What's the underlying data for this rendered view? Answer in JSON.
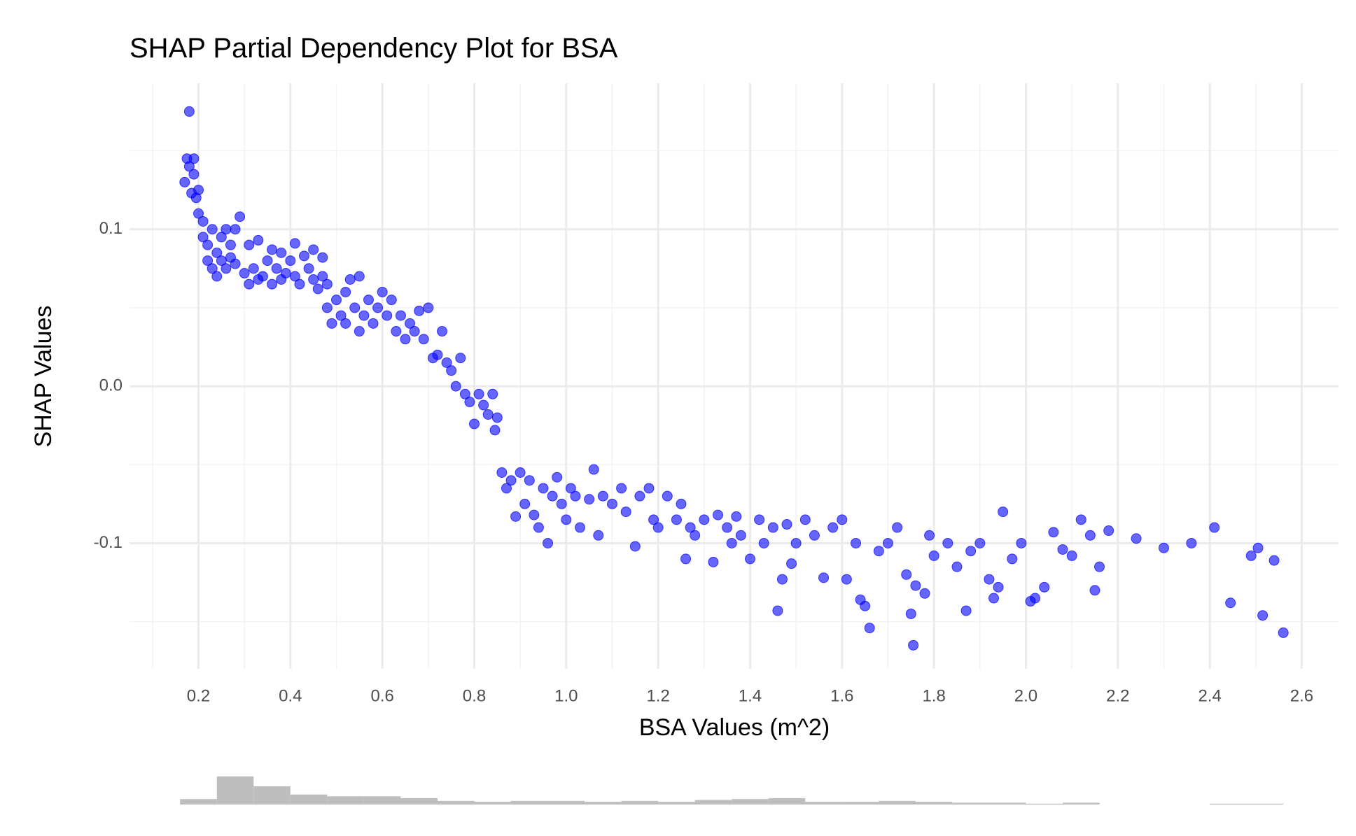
{
  "chart_data": [
    {
      "type": "scatter",
      "title": "SHAP Partial Dependency Plot for BSA",
      "x_label": "BSA Values (m^2)",
      "y_label": "SHAP Values",
      "color": "#0000ff",
      "grid": true,
      "xlim": [
        0.05,
        2.68
      ],
      "ylim": [
        -0.18,
        0.193
      ],
      "xticks": [
        0.2,
        0.4,
        0.6,
        0.8,
        {
          "value": 1.0,
          "label": "1.0"
        },
        1.2,
        1.4,
        1.6,
        1.8,
        {
          "value": 2.0,
          "label": "2.0"
        },
        2.2,
        2.4,
        2.6
      ],
      "yticks": [
        -0.1,
        {
          "value": 0.0,
          "label": "0.0"
        },
        0.1
      ],
      "x": [
        0.17,
        0.175,
        0.18,
        0.18,
        0.185,
        0.19,
        0.19,
        0.195,
        0.2,
        0.2,
        0.21,
        0.21,
        0.22,
        0.22,
        0.23,
        0.23,
        0.24,
        0.24,
        0.25,
        0.25,
        0.26,
        0.26,
        0.27,
        0.27,
        0.28,
        0.28,
        0.29,
        0.3,
        0.31,
        0.31,
        0.32,
        0.33,
        0.33,
        0.34,
        0.35,
        0.36,
        0.36,
        0.37,
        0.38,
        0.38,
        0.39,
        0.4,
        0.41,
        0.41,
        0.42,
        0.43,
        0.44,
        0.45,
        0.45,
        0.46,
        0.47,
        0.47,
        0.48,
        0.48,
        0.49,
        0.5,
        0.51,
        0.52,
        0.52,
        0.53,
        0.54,
        0.55,
        0.55,
        0.56,
        0.57,
        0.58,
        0.59,
        0.6,
        0.61,
        0.62,
        0.63,
        0.64,
        0.65,
        0.66,
        0.67,
        0.68,
        0.69,
        0.7,
        0.71,
        0.72,
        0.73,
        0.74,
        0.75,
        0.76,
        0.77,
        0.78,
        0.79,
        0.8,
        0.81,
        0.82,
        0.83,
        0.84,
        0.845,
        0.85,
        0.86,
        0.87,
        0.88,
        0.89,
        0.9,
        0.91,
        0.92,
        0.93,
        0.94,
        0.95,
        0.96,
        0.97,
        0.98,
        0.99,
        1.0,
        1.01,
        1.02,
        1.03,
        1.05,
        1.06,
        1.07,
        1.08,
        1.1,
        1.12,
        1.13,
        1.15,
        1.16,
        1.18,
        1.19,
        1.2,
        1.22,
        1.24,
        1.25,
        1.26,
        1.27,
        1.28,
        1.3,
        1.32,
        1.33,
        1.35,
        1.36,
        1.37,
        1.38,
        1.4,
        1.42,
        1.43,
        1.45,
        1.46,
        1.47,
        1.48,
        1.49,
        1.5,
        1.52,
        1.54,
        1.56,
        1.58,
        1.6,
        1.61,
        1.63,
        1.64,
        1.65,
        1.66,
        1.68,
        1.7,
        1.72,
        1.74,
        1.75,
        1.755,
        1.76,
        1.78,
        1.79,
        1.8,
        1.83,
        1.85,
        1.87,
        1.88,
        1.9,
        1.92,
        1.93,
        1.94,
        1.95,
        1.97,
        1.99,
        2.01,
        2.02,
        2.04,
        2.06,
        2.08,
        2.1,
        2.12,
        2.14,
        2.15,
        2.16,
        2.18,
        2.24,
        2.3,
        2.36,
        2.41,
        2.445,
        2.49,
        2.505,
        2.515,
        2.54,
        2.56
      ],
      "values": [
        0.13,
        0.145,
        0.175,
        0.14,
        0.123,
        0.145,
        0.135,
        0.12,
        0.125,
        0.11,
        0.105,
        0.095,
        0.09,
        0.08,
        0.1,
        0.075,
        0.085,
        0.07,
        0.095,
        0.08,
        0.1,
        0.075,
        0.09,
        0.082,
        0.1,
        0.078,
        0.108,
        0.072,
        0.09,
        0.065,
        0.075,
        0.093,
        0.068,
        0.07,
        0.08,
        0.087,
        0.065,
        0.075,
        0.085,
        0.068,
        0.072,
        0.08,
        0.091,
        0.07,
        0.065,
        0.083,
        0.075,
        0.068,
        0.087,
        0.062,
        0.082,
        0.07,
        0.05,
        0.065,
        0.04,
        0.055,
        0.045,
        0.06,
        0.04,
        0.068,
        0.05,
        0.07,
        0.035,
        0.045,
        0.055,
        0.04,
        0.05,
        0.06,
        0.045,
        0.055,
        0.035,
        0.045,
        0.03,
        0.04,
        0.035,
        0.048,
        0.03,
        0.05,
        0.018,
        0.02,
        0.035,
        0.015,
        0.01,
        0.0,
        0.018,
        -0.005,
        -0.01,
        -0.024,
        -0.005,
        -0.012,
        -0.018,
        -0.005,
        -0.028,
        -0.02,
        -0.055,
        -0.065,
        -0.06,
        -0.083,
        -0.055,
        -0.075,
        -0.06,
        -0.082,
        -0.09,
        -0.065,
        -0.1,
        -0.07,
        -0.058,
        -0.075,
        -0.085,
        -0.065,
        -0.07,
        -0.09,
        -0.072,
        -0.053,
        -0.095,
        -0.07,
        -0.075,
        -0.065,
        -0.08,
        -0.102,
        -0.07,
        -0.065,
        -0.085,
        -0.09,
        -0.07,
        -0.085,
        -0.075,
        -0.11,
        -0.09,
        -0.095,
        -0.085,
        -0.112,
        -0.082,
        -0.09,
        -0.1,
        -0.083,
        -0.095,
        -0.11,
        -0.085,
        -0.1,
        -0.09,
        -0.143,
        -0.123,
        -0.088,
        -0.113,
        -0.1,
        -0.085,
        -0.095,
        -0.122,
        -0.09,
        -0.085,
        -0.123,
        -0.1,
        -0.136,
        -0.14,
        -0.154,
        -0.105,
        -0.1,
        -0.09,
        -0.12,
        -0.145,
        -0.165,
        -0.127,
        -0.132,
        -0.095,
        -0.108,
        -0.1,
        -0.115,
        -0.143,
        -0.105,
        -0.1,
        -0.123,
        -0.135,
        -0.128,
        -0.08,
        -0.11,
        -0.1,
        -0.137,
        -0.135,
        -0.128,
        -0.093,
        -0.104,
        -0.108,
        -0.085,
        -0.095,
        -0.13,
        -0.115,
        -0.092,
        -0.097,
        -0.103,
        -0.1,
        -0.09,
        -0.138,
        -0.108,
        -0.103,
        -0.146,
        -0.111,
        -0.157
      ]
    },
    {
      "type": "histogram",
      "color": "#bebebe",
      "bins": [
        0.16,
        0.24,
        0.32,
        0.4,
        0.48,
        0.56,
        0.64,
        0.72,
        0.8,
        0.88,
        0.96,
        1.04,
        1.12,
        1.2,
        1.28,
        1.36,
        1.44,
        1.52,
        1.6,
        1.68,
        1.76,
        1.84,
        1.92,
        2.0,
        2.08,
        2.16,
        2.24,
        2.32,
        2.4,
        2.48,
        2.56
      ],
      "counts": [
        6,
        31,
        20,
        11,
        9,
        9,
        7,
        4,
        3,
        4,
        4,
        3,
        4,
        3,
        5,
        6,
        7,
        3,
        3,
        4,
        3,
        2,
        2,
        1,
        2,
        0,
        0,
        0,
        1,
        1
      ]
    }
  ]
}
